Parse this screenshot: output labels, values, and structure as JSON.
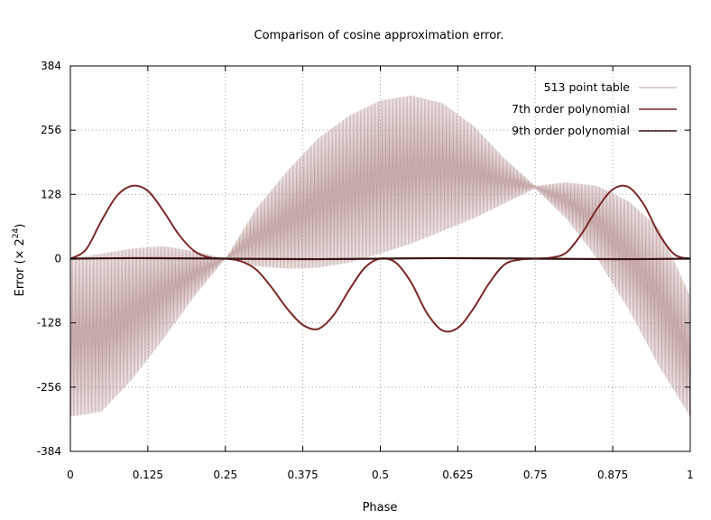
{
  "chart_data": {
    "type": "line",
    "title": "Comparison of cosine approximation error.",
    "xlabel": "Phase",
    "ylabel": "Error (× 2",
    "ylabel_superscript": "24",
    "ylabel_suffix": ")",
    "xlim": [
      0,
      1
    ],
    "ylim": [
      -384,
      384
    ],
    "x_ticks": [
      0,
      0.125,
      0.25,
      0.375,
      0.5,
      0.625,
      0.75,
      0.875,
      1
    ],
    "x_tick_labels": [
      "0",
      "0.125",
      "0.25",
      "0.375",
      "0.5",
      "0.625",
      "0.75",
      "0.875",
      "1"
    ],
    "y_ticks": [
      384,
      256,
      128,
      0,
      -128,
      -256,
      -384
    ],
    "y_tick_labels": [
      "384",
      "256",
      "128",
      "0",
      "-128",
      "-256",
      "-384"
    ],
    "grid": true,
    "legend_position": "top-right",
    "series": [
      {
        "name": "513 point table",
        "color": "#c0a0a0",
        "style": "dense-oscillation",
        "upper_envelope": {
          "x": [
            0,
            0.05,
            0.1,
            0.15,
            0.2,
            0.25,
            0.3,
            0.35,
            0.4,
            0.45,
            0.5,
            0.55,
            0.6,
            0.65,
            0.7,
            0.75,
            0.8,
            0.85,
            0.9,
            0.95,
            1
          ],
          "y": [
            0,
            10,
            20,
            25,
            15,
            0,
            100,
            175,
            240,
            285,
            315,
            325,
            310,
            265,
            200,
            145,
            152,
            145,
            115,
            60,
            -75
          ]
        },
        "lower_envelope": {
          "x": [
            0,
            0.05,
            0.1,
            0.15,
            0.2,
            0.25,
            0.3,
            0.35,
            0.4,
            0.45,
            0.5,
            0.55,
            0.6,
            0.65,
            0.7,
            0.75,
            0.8,
            0.85,
            0.9,
            0.95,
            1
          ],
          "y": [
            -315,
            -305,
            -240,
            -160,
            -75,
            0,
            -15,
            -20,
            -18,
            -8,
            10,
            30,
            55,
            80,
            110,
            140,
            80,
            0,
            -100,
            -215,
            -315
          ]
        }
      },
      {
        "name": "7th order polynomial",
        "color": "#7a2a2a",
        "x": [
          0,
          0.025,
          0.05,
          0.075,
          0.1,
          0.125,
          0.15,
          0.175,
          0.2,
          0.225,
          0.25,
          0.275,
          0.3,
          0.325,
          0.35,
          0.375,
          0.4,
          0.425,
          0.45,
          0.475,
          0.5,
          0.525,
          0.55,
          0.575,
          0.6,
          0.625,
          0.65,
          0.675,
          0.7,
          0.725,
          0.75,
          0.775,
          0.8,
          0.825,
          0.85,
          0.875,
          0.9,
          0.925,
          0.95,
          0.975,
          1
        ],
        "y": [
          0,
          18,
          75,
          125,
          145,
          135,
          95,
          48,
          15,
          2,
          0,
          -5,
          -22,
          -58,
          -100,
          -132,
          -140,
          -112,
          -62,
          -18,
          0,
          -8,
          -48,
          -108,
          -143,
          -138,
          -100,
          -50,
          -12,
          -2,
          0,
          2,
          12,
          50,
          100,
          138,
          143,
          108,
          48,
          8,
          0
        ]
      },
      {
        "name": "9th order polynomial",
        "color": "#3a1515",
        "x": [
          0,
          0.1,
          0.2,
          0.25,
          0.3,
          0.4,
          0.5,
          0.6,
          0.7,
          0.75,
          0.8,
          0.9,
          1
        ],
        "y": [
          0,
          1,
          0.5,
          0,
          -0.5,
          -1,
          0,
          1,
          0.5,
          0,
          -0.5,
          -1,
          0
        ]
      }
    ]
  }
}
